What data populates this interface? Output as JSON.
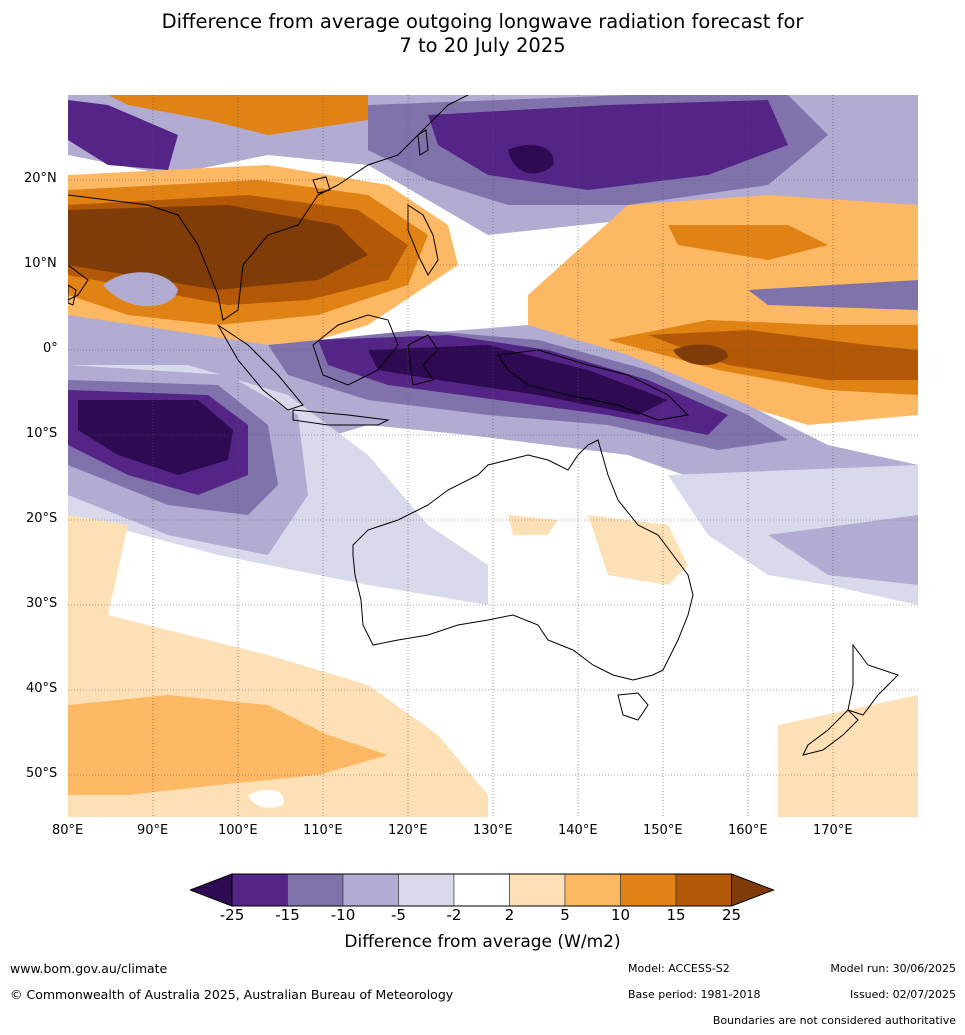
{
  "title_line1": "Difference from average outgoing longwave radiation forecast for",
  "title_line2": "7 to 20 July 2025",
  "lat_labels": [
    "20°N",
    "10°N",
    "0°",
    "10°S",
    "20°S",
    "30°S",
    "40°S",
    "50°S"
  ],
  "lon_labels": [
    "80°E",
    "90°E",
    "100°E",
    "110°E",
    "120°E",
    "130°E",
    "140°E",
    "150°E",
    "160°E",
    "170°E"
  ],
  "colorbar": {
    "ticks": [
      "-25",
      "-15",
      "-10",
      "-5",
      "-2",
      "2",
      "5",
      "10",
      "15",
      "25"
    ],
    "colors": [
      "#2d0a52",
      "#542587",
      "#8073ac",
      "#b2abd2",
      "#d8daeb",
      "#ffffff",
      "#fee0b6",
      "#fdb863",
      "#e08214",
      "#b35806",
      "#7f3b08"
    ],
    "title": "Difference from average (W/m2)"
  },
  "footer": {
    "url": "www.bom.gov.au/climate",
    "copyright": "© Commonwealth of Australia 2025, Australian Bureau of Meteorology",
    "model": "Model: ACCESS-S2",
    "base_period": "Base period: 1981-2018",
    "model_run": "Model run: 30/06/2025",
    "issued": "Issued: 02/07/2025",
    "disclaimer": "Boundaries are not considered authoritative"
  }
}
